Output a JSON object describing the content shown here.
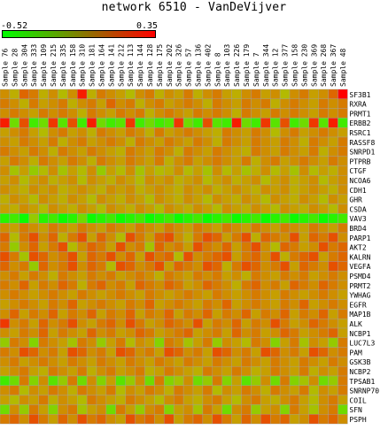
{
  "title": "network 6510 - VanDeVijver",
  "colors": {
    "low": "#00ff00",
    "high": "#ff0000",
    "cell_border": "#a0a0a0",
    "background": "#ffffff"
  },
  "chart_data": {
    "type": "heatmap",
    "title": "network 6510 - VanDeVijver",
    "color_scale": {
      "min": -0.52,
      "max": 0.35,
      "min_label": "-0.52",
      "max_label": "0.35",
      "low_color": "#00ff00",
      "high_color": "#ff0000"
    },
    "columns": [
      "Sample 76",
      "Sample 28",
      "Sample 304",
      "Sample 333",
      "Sample 109",
      "Sample 215",
      "Sample 335",
      "Sample 158",
      "Sample 310",
      "Sample 181",
      "Sample 164",
      "Sample 141",
      "Sample 212",
      "Sample 113",
      "Sample 144",
      "Sample 128",
      "Sample 175",
      "Sample 202",
      "Sample 326",
      "Sample 57",
      "Sample 136",
      "Sample 402",
      "Sample 8",
      "Sample 103",
      "Sample 226",
      "Sample 179",
      "Sample 7",
      "Sample 344",
      "Sample 12",
      "Sample 377",
      "Sample 158",
      "Sample 230",
      "Sample 369",
      "Sample 268",
      "Sample 367",
      "Sample 48"
    ],
    "rows": [
      "SF3B1",
      "RXRA",
      "PRMT1",
      "ERBB2",
      "RSRC1",
      "RASSF8",
      "SNRPD1",
      "PTPRB",
      "CTGF",
      "NCOA6",
      "CDH1",
      "GHR",
      "CSDA",
      "VAV3",
      "BRD4",
      "PARP1",
      "AKT2",
      "KALRN",
      "VEGFA",
      "PSMD4",
      "PRMT2",
      "YWHAG",
      "EGFR",
      "MAP1B",
      "ALK",
      "NCBP1",
      "LUC7L3",
      "PAM",
      "GSK3B",
      "NCBP2",
      "TPSAB1",
      "SNRNP70",
      "COIL",
      "SFN",
      "PSPH"
    ],
    "values": [
      [
        0.05,
        -0.05,
        0.15,
        0.1,
        -0.05,
        0.05,
        -0.1,
        0.05,
        0.3,
        -0.05,
        0.1,
        0.05,
        0.0,
        -0.1,
        0.05,
        0.1,
        -0.05,
        0.05,
        0.0,
        0.1,
        -0.05,
        0.05,
        0.1,
        0.0,
        -0.05,
        0.05,
        0.1,
        0.0,
        0.05,
        -0.1,
        0.05,
        0.1,
        0.0,
        0.05,
        0.15,
        0.35
      ],
      [
        0.1,
        0.05,
        -0.05,
        0.1,
        0.0,
        0.05,
        0.1,
        -0.05,
        0.05,
        0.1,
        0.0,
        0.15,
        0.05,
        0.1,
        -0.05,
        0.05,
        0.1,
        0.0,
        0.05,
        0.1,
        0.05,
        -0.05,
        0.1,
        0.05,
        0.0,
        0.1,
        0.05,
        0.1,
        -0.05,
        0.05,
        0.1,
        0.05,
        0.0,
        0.1,
        0.05,
        0.1
      ],
      [
        0.05,
        0.1,
        0.05,
        0.0,
        0.1,
        0.05,
        0.1,
        0.05,
        -0.05,
        0.1,
        0.05,
        0.0,
        0.1,
        0.05,
        0.1,
        -0.05,
        0.05,
        0.1,
        0.05,
        0.0,
        0.1,
        0.05,
        0.1,
        0.05,
        -0.05,
        0.1,
        0.05,
        0.0,
        0.1,
        0.05,
        0.1,
        0.05,
        0.0,
        0.1,
        0.05,
        0.1
      ],
      [
        0.3,
        -0.3,
        0.2,
        -0.4,
        -0.3,
        0.25,
        -0.35,
        0.2,
        -0.4,
        0.3,
        -0.3,
        -0.4,
        -0.35,
        0.25,
        -0.4,
        -0.3,
        -0.4,
        -0.35,
        0.25,
        -0.3,
        -0.4,
        0.2,
        -0.35,
        -0.4,
        0.3,
        -0.3,
        -0.4,
        0.25,
        -0.35,
        0.2,
        -0.4,
        -0.3,
        0.25,
        -0.35,
        0.3,
        -0.4
      ],
      [
        0.0,
        0.05,
        0.1,
        0.0,
        -0.1,
        0.05,
        0.1,
        0.0,
        0.05,
        -0.05,
        0.1,
        0.05,
        0.0,
        0.1,
        0.05,
        -0.05,
        0.1,
        0.0,
        0.05,
        0.1,
        0.05,
        0.0,
        -0.05,
        0.1,
        0.05,
        0.0,
        0.1,
        0.05,
        -0.1,
        0.05,
        0.1,
        0.0,
        0.05,
        0.1,
        0.05,
        0.0
      ],
      [
        0.05,
        0.0,
        0.1,
        0.05,
        0.0,
        0.1,
        -0.05,
        0.05,
        0.1,
        0.0,
        0.05,
        0.1,
        0.05,
        -0.05,
        0.1,
        0.05,
        0.0,
        0.1,
        0.05,
        0.0,
        0.1,
        0.05,
        -0.05,
        0.1,
        0.05,
        0.0,
        0.1,
        0.05,
        0.0,
        0.1,
        0.05,
        -0.05,
        0.1,
        0.05,
        0.0,
        0.1
      ],
      [
        0.1,
        0.05,
        0.0,
        0.1,
        0.05,
        -0.05,
        0.1,
        0.05,
        0.0,
        0.1,
        0.05,
        0.0,
        -0.05,
        0.1,
        0.05,
        0.0,
        0.1,
        0.05,
        -0.05,
        0.1,
        0.05,
        0.0,
        0.1,
        0.05,
        0.0,
        -0.05,
        0.1,
        0.05,
        0.0,
        0.1,
        0.05,
        0.0,
        0.1,
        -0.05,
        0.05,
        0.1
      ],
      [
        0.0,
        0.1,
        0.05,
        -0.05,
        0.1,
        0.05,
        0.0,
        0.1,
        0.05,
        -0.05,
        0.1,
        0.05,
        0.0,
        0.1,
        0.05,
        0.0,
        0.1,
        -0.05,
        0.05,
        0.1,
        0.0,
        0.05,
        0.1,
        0.05,
        0.0,
        0.1,
        -0.05,
        0.05,
        0.1,
        0.0,
        0.05,
        0.1,
        0.05,
        0.0,
        0.1,
        0.05
      ],
      [
        0.05,
        -0.15,
        0.0,
        -0.2,
        -0.1,
        0.05,
        -0.15,
        0.0,
        -0.1,
        0.05,
        -0.2,
        0.0,
        -0.1,
        0.05,
        -0.15,
        0.0,
        -0.1,
        -0.05,
        0.05,
        -0.1,
        0.0,
        -0.15,
        0.05,
        -0.1,
        0.0,
        -0.15,
        -0.05,
        0.05,
        -0.1,
        0.0,
        -0.15,
        0.05,
        -0.1,
        0.0,
        -0.05,
        0.05
      ],
      [
        0.0,
        0.05,
        -0.1,
        0.0,
        0.05,
        -0.05,
        0.0,
        0.05,
        -0.1,
        0.05,
        0.0,
        -0.05,
        0.05,
        0.0,
        -0.1,
        0.05,
        0.0,
        0.05,
        -0.05,
        0.0,
        0.05,
        -0.1,
        0.0,
        0.05,
        -0.05,
        0.0,
        0.05,
        -0.1,
        0.0,
        0.05,
        -0.05,
        0.0,
        0.05,
        -0.1,
        0.0,
        0.05
      ],
      [
        0.05,
        0.0,
        -0.05,
        0.05,
        0.0,
        0.05,
        -0.05,
        0.0,
        0.05,
        0.0,
        -0.05,
        0.05,
        0.0,
        0.05,
        -0.05,
        0.0,
        0.05,
        0.0,
        -0.05,
        0.05,
        0.0,
        0.05,
        -0.05,
        0.0,
        0.05,
        0.0,
        -0.05,
        0.05,
        0.0,
        0.05,
        -0.05,
        0.0,
        0.05,
        0.0,
        -0.05,
        0.05
      ],
      [
        -0.05,
        0.05,
        0.0,
        -0.1,
        0.05,
        0.0,
        -0.05,
        0.05,
        0.0,
        -0.1,
        0.05,
        0.0,
        -0.05,
        0.05,
        0.0,
        -0.1,
        0.05,
        0.0,
        -0.05,
        0.05,
        0.0,
        -0.1,
        0.05,
        0.0,
        -0.05,
        0.05,
        0.0,
        -0.1,
        0.05,
        0.0,
        -0.05,
        0.05,
        0.0,
        -0.1,
        0.05,
        0.0
      ],
      [
        0.0,
        -0.05,
        0.05,
        0.0,
        -0.1,
        0.05,
        0.0,
        -0.05,
        0.05,
        0.0,
        -0.1,
        0.05,
        0.0,
        -0.05,
        0.05,
        0.0,
        -0.1,
        0.05,
        0.0,
        -0.05,
        0.05,
        0.0,
        -0.1,
        0.05,
        0.0,
        -0.05,
        0.05,
        0.0,
        -0.1,
        0.05,
        0.0,
        -0.05,
        0.05,
        0.0,
        -0.1,
        0.05
      ],
      [
        -0.45,
        -0.4,
        -0.5,
        -0.2,
        -0.45,
        -0.4,
        -0.5,
        -0.45,
        -0.3,
        -0.5,
        -0.45,
        -0.4,
        -0.5,
        -0.45,
        -0.4,
        -0.5,
        -0.45,
        -0.4,
        -0.5,
        -0.45,
        -0.4,
        -0.5,
        -0.45,
        -0.4,
        -0.5,
        -0.45,
        -0.4,
        -0.5,
        -0.45,
        -0.4,
        -0.5,
        -0.45,
        -0.4,
        -0.5,
        -0.45,
        -0.4
      ],
      [
        0.05,
        0.0,
        0.1,
        0.05,
        0.0,
        0.1,
        0.05,
        0.0,
        0.1,
        0.05,
        0.0,
        0.1,
        0.05,
        0.0,
        0.1,
        0.05,
        0.0,
        0.1,
        0.05,
        0.0,
        0.1,
        0.05,
        0.0,
        0.1,
        0.05,
        0.0,
        0.1,
        0.05,
        0.0,
        0.1,
        0.05,
        0.0,
        0.1,
        0.05,
        0.0,
        0.1
      ],
      [
        0.15,
        -0.1,
        0.1,
        0.2,
        0.05,
        0.15,
        -0.05,
        0.1,
        0.2,
        0.0,
        0.15,
        0.05,
        -0.1,
        0.2,
        0.1,
        0.0,
        0.15,
        0.2,
        0.05,
        -0.05,
        0.1,
        0.2,
        0.15,
        0.0,
        0.1,
        0.2,
        -0.05,
        0.15,
        0.1,
        0.05,
        0.2,
        0.0,
        0.15,
        0.1,
        0.2,
        0.05
      ],
      [
        0.1,
        -0.2,
        0.05,
        0.15,
        0.0,
        0.1,
        0.2,
        -0.1,
        0.05,
        0.15,
        0.1,
        0.0,
        0.2,
        0.05,
        0.1,
        -0.15,
        0.15,
        0.05,
        0.1,
        0.0,
        0.2,
        0.1,
        0.05,
        0.15,
        0.0,
        0.1,
        0.2,
        0.05,
        -0.1,
        0.15,
        0.1,
        0.0,
        0.05,
        0.2,
        0.1,
        0.15
      ],
      [
        0.2,
        0.1,
        -0.15,
        0.2,
        0.15,
        0.05,
        0.1,
        0.2,
        0.0,
        0.15,
        0.1,
        0.2,
        0.05,
        0.15,
        0.0,
        0.2,
        0.1,
        0.15,
        -0.1,
        0.2,
        0.05,
        0.1,
        0.15,
        0.2,
        0.0,
        0.1,
        0.15,
        0.05,
        0.2,
        -0.05,
        0.1,
        0.15,
        0.2,
        0.0,
        0.1,
        0.15
      ],
      [
        0.15,
        0.05,
        0.1,
        -0.2,
        0.15,
        0.05,
        0.1,
        0.2,
        0.05,
        0.15,
        0.1,
        -0.1,
        0.2,
        0.15,
        0.05,
        0.1,
        0.2,
        0.0,
        0.15,
        0.1,
        0.05,
        0.2,
        0.15,
        -0.05,
        0.1,
        0.2,
        0.15,
        0.05,
        0.1,
        0.2,
        0.0,
        0.15,
        0.1,
        0.05,
        0.2,
        0.15
      ],
      [
        0.05,
        0.1,
        0.0,
        0.1,
        0.05,
        -0.05,
        0.1,
        0.05,
        0.0,
        0.1,
        0.05,
        0.1,
        0.0,
        0.05,
        0.1,
        0.05,
        -0.05,
        0.1,
        0.05,
        0.0,
        0.1,
        0.05,
        0.1,
        0.0,
        0.05,
        -0.05,
        0.1,
        0.05,
        0.0,
        0.1,
        0.05,
        0.1,
        0.0,
        0.05,
        0.1,
        0.05
      ],
      [
        0.1,
        0.05,
        0.15,
        0.0,
        0.1,
        0.05,
        0.15,
        0.1,
        -0.05,
        0.1,
        0.15,
        0.05,
        0.1,
        0.0,
        0.15,
        0.1,
        0.05,
        0.15,
        0.1,
        0.0,
        0.05,
        0.15,
        0.1,
        0.05,
        -0.05,
        0.1,
        0.15,
        0.05,
        0.1,
        0.0,
        0.15,
        0.1,
        0.05,
        0.15,
        0.1,
        0.05
      ],
      [
        0.05,
        0.1,
        0.05,
        0.0,
        0.05,
        0.1,
        0.05,
        0.0,
        0.1,
        0.05,
        0.0,
        0.05,
        0.1,
        0.05,
        0.0,
        0.1,
        0.05,
        0.0,
        0.05,
        0.1,
        0.05,
        0.0,
        0.1,
        0.05,
        0.0,
        0.05,
        0.1,
        0.05,
        0.0,
        0.1,
        0.05,
        0.0,
        0.05,
        0.1,
        0.05,
        0.0
      ],
      [
        0.0,
        0.05,
        0.1,
        0.05,
        0.0,
        0.1,
        0.05,
        0.15,
        0.0,
        0.05,
        0.1,
        0.05,
        0.0,
        0.1,
        0.05,
        0.15,
        0.0,
        0.05,
        0.1,
        0.05,
        0.0,
        0.1,
        0.05,
        0.15,
        0.0,
        0.05,
        0.1,
        0.05,
        0.0,
        0.1,
        0.05,
        0.15,
        0.0,
        0.05,
        0.1,
        0.05
      ],
      [
        0.05,
        0.15,
        0.0,
        0.1,
        0.05,
        0.15,
        0.0,
        0.1,
        0.05,
        0.15,
        0.0,
        0.1,
        0.05,
        0.15,
        0.0,
        0.1,
        0.05,
        0.15,
        0.0,
        0.1,
        0.05,
        0.15,
        0.0,
        0.1,
        0.05,
        0.15,
        0.0,
        0.1,
        0.05,
        0.15,
        0.0,
        0.1,
        0.05,
        0.15,
        0.0,
        0.1
      ],
      [
        0.25,
        0.05,
        0.1,
        0.0,
        0.15,
        0.05,
        0.1,
        0.2,
        0.05,
        0.0,
        0.1,
        0.15,
        0.05,
        0.2,
        0.1,
        0.0,
        0.05,
        0.15,
        0.1,
        0.05,
        0.2,
        0.0,
        0.1,
        0.05,
        0.15,
        0.0,
        0.1,
        0.05,
        0.2,
        0.1,
        0.0,
        0.05,
        0.15,
        0.1,
        0.05,
        0.0
      ],
      [
        0.05,
        0.0,
        0.1,
        0.05,
        0.15,
        0.0,
        0.1,
        0.05,
        0.0,
        0.15,
        0.05,
        0.1,
        0.0,
        0.05,
        0.15,
        0.1,
        0.0,
        0.05,
        0.1,
        0.15,
        0.0,
        0.05,
        0.1,
        0.0,
        0.15,
        0.05,
        0.1,
        0.0,
        0.05,
        0.15,
        0.1,
        0.0,
        0.05,
        0.1,
        0.15,
        0.0
      ],
      [
        -0.2,
        0.1,
        0.05,
        -0.25,
        0.1,
        0.05,
        0.0,
        -0.15,
        0.1,
        0.05,
        -0.2,
        0.0,
        0.1,
        -0.1,
        0.05,
        0.0,
        -0.25,
        0.1,
        0.05,
        -0.15,
        0.0,
        0.1,
        -0.2,
        0.05,
        0.0,
        -0.1,
        0.1,
        0.05,
        -0.25,
        0.0,
        0.1,
        -0.15,
        0.05,
        0.0,
        -0.2,
        0.1
      ],
      [
        0.1,
        0.05,
        0.2,
        0.15,
        0.05,
        0.1,
        0.0,
        0.2,
        0.15,
        0.05,
        0.1,
        0.0,
        0.2,
        0.15,
        0.05,
        0.1,
        0.0,
        0.2,
        0.15,
        0.05,
        0.1,
        0.0,
        0.2,
        0.15,
        0.05,
        0.1,
        0.0,
        0.2,
        0.15,
        0.05,
        0.1,
        0.0,
        0.2,
        0.15,
        0.05,
        0.1
      ],
      [
        0.05,
        0.1,
        0.0,
        0.05,
        0.1,
        0.05,
        0.0,
        0.1,
        0.05,
        0.0,
        0.1,
        0.05,
        0.0,
        0.1,
        0.05,
        0.0,
        0.1,
        0.05,
        0.0,
        0.1,
        0.05,
        0.0,
        0.1,
        0.05,
        0.0,
        0.1,
        0.05,
        0.0,
        0.1,
        0.05,
        0.0,
        0.1,
        0.05,
        0.0,
        0.1,
        0.05
      ],
      [
        0.0,
        0.05,
        0.1,
        0.0,
        -0.05,
        0.1,
        0.05,
        0.0,
        0.1,
        -0.05,
        0.05,
        0.1,
        0.0,
        0.05,
        0.1,
        -0.05,
        0.0,
        0.1,
        0.05,
        0.0,
        -0.05,
        0.1,
        0.05,
        0.0,
        0.1,
        0.05,
        -0.05,
        0.0,
        0.1,
        0.05,
        0.0,
        0.1,
        -0.05,
        0.05,
        0.0,
        0.1
      ],
      [
        -0.4,
        -0.3,
        0.1,
        -0.25,
        0.05,
        -0.35,
        -0.2,
        0.1,
        -0.3,
        0.05,
        -0.25,
        0.0,
        -0.35,
        -0.2,
        0.05,
        -0.3,
        0.1,
        -0.25,
        -0.15,
        0.05,
        -0.3,
        -0.2,
        0.1,
        -0.25,
        0.0,
        -0.35,
        -0.2,
        0.05,
        -0.3,
        0.1,
        -0.25,
        -0.15,
        0.05,
        -0.3,
        -0.2,
        0.1
      ],
      [
        0.05,
        0.1,
        -0.1,
        0.05,
        0.0,
        0.1,
        0.05,
        -0.05,
        0.1,
        0.05,
        0.0,
        0.1,
        -0.1,
        0.05,
        0.0,
        0.1,
        0.05,
        -0.05,
        0.1,
        0.05,
        0.0,
        0.1,
        -0.1,
        0.05,
        0.0,
        0.1,
        0.05,
        -0.05,
        0.1,
        0.05,
        0.0,
        0.1,
        -0.1,
        0.05,
        0.0,
        0.1
      ],
      [
        0.0,
        -0.1,
        0.05,
        0.0,
        0.1,
        -0.05,
        0.05,
        0.0,
        -0.1,
        0.1,
        0.05,
        0.0,
        -0.05,
        0.1,
        0.05,
        0.0,
        -0.1,
        0.05,
        0.1,
        0.0,
        -0.05,
        0.05,
        0.1,
        0.0,
        -0.1,
        0.05,
        0.1,
        0.0,
        -0.05,
        0.05,
        0.1,
        0.0,
        -0.1,
        0.05,
        0.1,
        0.0
      ],
      [
        -0.3,
        0.05,
        -0.2,
        0.1,
        0.0,
        -0.25,
        0.05,
        0.1,
        -0.15,
        0.0,
        0.05,
        -0.3,
        0.1,
        0.0,
        -0.2,
        0.05,
        0.1,
        -0.25,
        0.0,
        0.05,
        -0.15,
        0.1,
        0.0,
        -0.3,
        0.05,
        0.1,
        -0.2,
        0.0,
        0.05,
        -0.25,
        0.1,
        0.0,
        -0.15,
        0.05,
        0.1,
        -0.3
      ],
      [
        0.1,
        0.15,
        0.05,
        0.2,
        0.1,
        0.0,
        0.15,
        0.05,
        0.2,
        0.1,
        0.15,
        0.05,
        0.0,
        0.2,
        0.1,
        0.15,
        0.05,
        0.2,
        0.0,
        0.1,
        0.15,
        0.05,
        0.2,
        0.1,
        0.0,
        0.15,
        0.05,
        0.2,
        0.1,
        0.15,
        0.0,
        0.05,
        0.2,
        0.1,
        0.15,
        0.05
      ]
    ]
  }
}
